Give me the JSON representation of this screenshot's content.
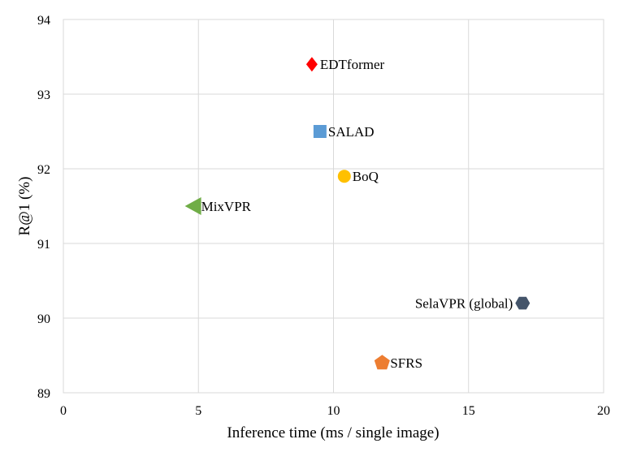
{
  "chart_data": {
    "type": "scatter",
    "xlabel": "Inference time (ms / single image)",
    "ylabel": "R@1 (%)",
    "xlim": [
      0,
      20
    ],
    "ylim": [
      89,
      94
    ],
    "xticks": [
      0,
      5,
      10,
      15,
      20
    ],
    "yticks": [
      89,
      90,
      91,
      92,
      93,
      94
    ],
    "grid": true,
    "points": [
      {
        "name": "EDTformer",
        "x": 9.2,
        "y": 93.4,
        "marker": "diamond",
        "color": "#ff0000",
        "label_side": "right"
      },
      {
        "name": "SALAD",
        "x": 9.5,
        "y": 92.5,
        "marker": "square",
        "color": "#5b9bd5",
        "label_side": "right"
      },
      {
        "name": "BoQ",
        "x": 10.4,
        "y": 91.9,
        "marker": "circle",
        "color": "#ffc000",
        "label_side": "right"
      },
      {
        "name": "MixVPR",
        "x": 4.8,
        "y": 91.5,
        "marker": "triangle-left",
        "color": "#70ad47",
        "label_side": "right"
      },
      {
        "name": "SelaVPR (global)",
        "x": 17.0,
        "y": 90.2,
        "marker": "hexagon",
        "color": "#44546a",
        "label_side": "left"
      },
      {
        "name": "SFRS",
        "x": 11.8,
        "y": 89.4,
        "marker": "pentagon",
        "color": "#ed7d31",
        "label_side": "right"
      }
    ]
  }
}
